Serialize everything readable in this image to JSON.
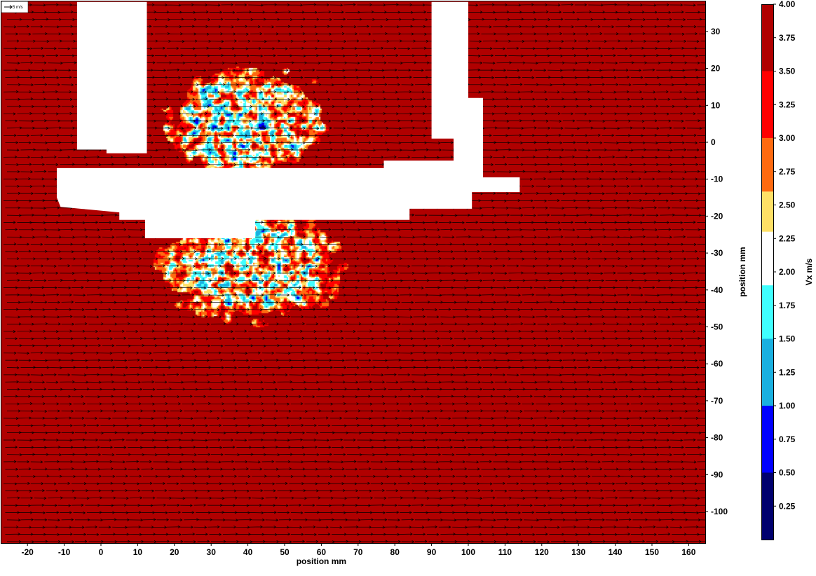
{
  "chart_data": {
    "type": "heatmap",
    "overlay": "vector-field",
    "xlabel": "position mm",
    "ylabel": "position mm",
    "colorbar_label": "Vx m/s",
    "scale_vector_label": "5 m/s",
    "scale_vector_magnitude": 5,
    "xlim": [
      -25,
      165
    ],
    "ylim": [
      -108,
      38
    ],
    "x_ticks": [
      -20,
      -10,
      0,
      10,
      20,
      30,
      40,
      50,
      60,
      70,
      80,
      90,
      100,
      110,
      120,
      130,
      140,
      150,
      160
    ],
    "y_ticks": [
      30,
      20,
      10,
      0,
      -10,
      -20,
      -30,
      -40,
      -50,
      -60,
      -70,
      -80,
      -90,
      -100
    ],
    "colorbar_ticks": [
      "4.00",
      "3.75",
      "3.50",
      "3.25",
      "3.00",
      "2.75",
      "2.50",
      "2.25",
      "2.00",
      "1.75",
      "1.50",
      "1.25",
      "1.00",
      "0.75",
      "0.50",
      "0.25"
    ],
    "colorbar_range": [
      0,
      4
    ],
    "color_bands": [
      {
        "from": 0.0,
        "to": 0.5,
        "color": "#00006e"
      },
      {
        "from": 0.5,
        "to": 1.0,
        "color": "#0000ff"
      },
      {
        "from": 1.0,
        "to": 1.5,
        "color": "#1ab0e0"
      },
      {
        "from": 1.5,
        "to": 1.9,
        "color": "#40ffff"
      },
      {
        "from": 1.9,
        "to": 2.3,
        "color": "#ffffff"
      },
      {
        "from": 2.3,
        "to": 2.6,
        "color": "#ffe066"
      },
      {
        "from": 2.6,
        "to": 3.0,
        "color": "#ff6a10"
      },
      {
        "from": 3.0,
        "to": 3.5,
        "color": "#ff0000"
      },
      {
        "from": 3.5,
        "to": 4.0,
        "color": "#b00000"
      }
    ],
    "background_velocity": 4.0,
    "masked_regions": [
      {
        "name": "left-vertical-strut",
        "polygon": [
          [
            -6.5,
            38
          ],
          [
            12.5,
            38
          ],
          [
            12.5,
            -3
          ],
          [
            1.5,
            -3
          ],
          [
            1.5,
            -2
          ],
          [
            -6.5,
            -2
          ]
        ]
      },
      {
        "name": "right-vertical-strut",
        "polygon": [
          [
            90,
            38
          ],
          [
            100,
            38
          ],
          [
            100,
            12
          ],
          [
            104,
            12
          ],
          [
            104,
            -10
          ],
          [
            96,
            -10
          ],
          [
            96,
            1
          ],
          [
            90,
            1
          ]
        ]
      },
      {
        "name": "horizontal-plate",
        "polygon": [
          [
            -12,
            -7
          ],
          [
            77,
            -7
          ],
          [
            77,
            -5
          ],
          [
            101,
            -5
          ],
          [
            101,
            -9.5
          ],
          [
            114,
            -9.5
          ],
          [
            114,
            -13.5
          ],
          [
            101,
            -13.5
          ],
          [
            101,
            -18
          ],
          [
            84,
            -18
          ],
          [
            84,
            -21
          ],
          [
            42,
            -21
          ],
          [
            42,
            -26
          ],
          [
            12,
            -26
          ],
          [
            12,
            -21
          ],
          [
            5,
            -21
          ],
          [
            5,
            -19
          ],
          [
            -11,
            -17.5
          ],
          [
            -12,
            -15
          ]
        ]
      }
    ],
    "recirculation_zones": [
      {
        "name": "upper-wake",
        "center": [
          40,
          6
        ],
        "radius": [
          26,
          17
        ]
      },
      {
        "name": "lower-wake",
        "center": [
          41,
          -33
        ],
        "radius": [
          30,
          18
        ]
      }
    ]
  },
  "colors": {
    "frame": "#000000",
    "arrow": "#000000",
    "mask": "#ffffff"
  }
}
